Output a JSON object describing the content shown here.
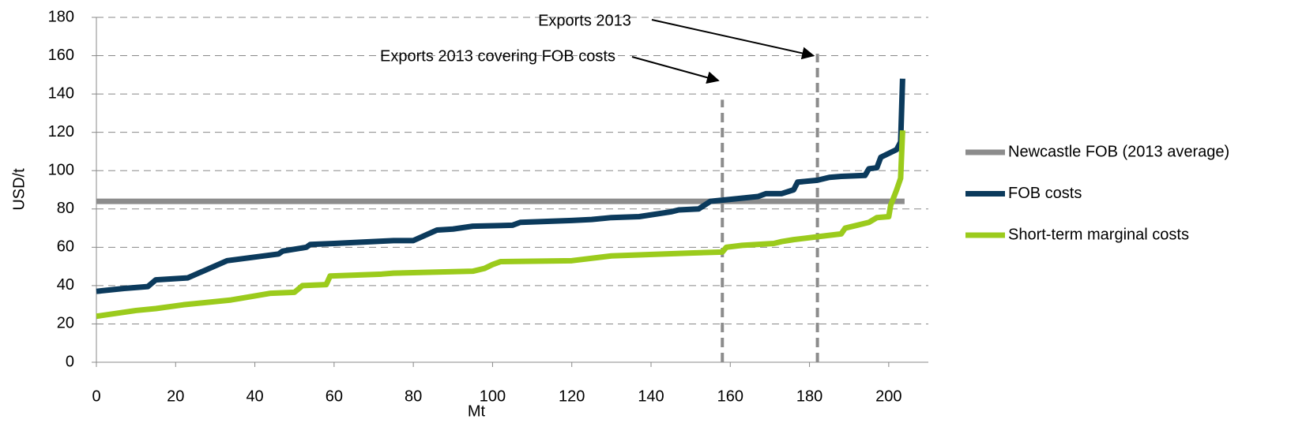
{
  "chart_data": {
    "type": "line",
    "xlabel": "Mt",
    "ylabel": "USD/t",
    "xlim": [
      0,
      210
    ],
    "xticks": [
      0,
      20,
      40,
      60,
      80,
      100,
      120,
      140,
      160,
      180,
      200
    ],
    "ylim": [
      0,
      180
    ],
    "yticks": [
      0,
      20,
      40,
      60,
      80,
      100,
      120,
      140,
      160,
      180
    ],
    "grid": true,
    "legend": "right",
    "series": [
      {
        "name": "Newcastle FOB (2013 average)",
        "color": "#8c8c8c",
        "x": [
          0,
          204
        ],
        "values": [
          84,
          84
        ]
      },
      {
        "name": "FOB costs",
        "color": "#0b3a5c",
        "x": [
          0,
          7,
          13,
          15,
          23,
          33,
          46,
          47,
          53,
          54,
          60,
          75,
          80,
          86,
          90,
          95,
          105,
          107,
          120,
          125,
          130,
          137,
          145,
          147,
          152,
          155,
          160,
          167,
          169,
          173,
          176,
          177,
          182,
          185,
          188,
          194,
          195,
          197,
          198,
          202,
          203,
          203.5
        ],
        "values": [
          37,
          38.5,
          39.5,
          43,
          44,
          53,
          56.5,
          58,
          60,
          61.5,
          62,
          63.5,
          63.5,
          69,
          69.5,
          71,
          71.5,
          73,
          74,
          74.5,
          75.5,
          76,
          78.5,
          79.5,
          80,
          84,
          85,
          86.5,
          88,
          88,
          90,
          94,
          95,
          96.5,
          97,
          97.5,
          101,
          101.5,
          107,
          111,
          115,
          148
        ]
      },
      {
        "name": "Short-term marginal costs",
        "color": "#9bcb1c",
        "x": [
          0,
          10,
          15,
          22,
          34,
          44,
          50,
          52,
          58,
          59,
          72,
          75,
          95,
          98,
          100,
          102,
          120,
          130,
          150,
          158,
          159,
          163,
          171,
          173,
          176,
          184,
          188,
          189,
          192,
          195,
          197,
          200,
          200.5,
          202,
          203,
          203.5
        ],
        "values": [
          24,
          27,
          28,
          30,
          32.5,
          36,
          36.5,
          40,
          40.5,
          45,
          46,
          46.5,
          47.5,
          49,
          51,
          52.5,
          53,
          55.5,
          57,
          57.5,
          60,
          61,
          62,
          63,
          64,
          66,
          67,
          70,
          71.5,
          73,
          75.5,
          76,
          82,
          90,
          96,
          121
        ]
      }
    ],
    "markers": [
      {
        "x": 158,
        "y": 137
      },
      {
        "x": 182,
        "y": 161
      }
    ],
    "annotations": [
      {
        "text": "Exports 2013",
        "x": 181,
        "y": 160
      },
      {
        "text": "Exports 2013 covering FOB costs",
        "x": 157,
        "y": 147
      }
    ]
  }
}
